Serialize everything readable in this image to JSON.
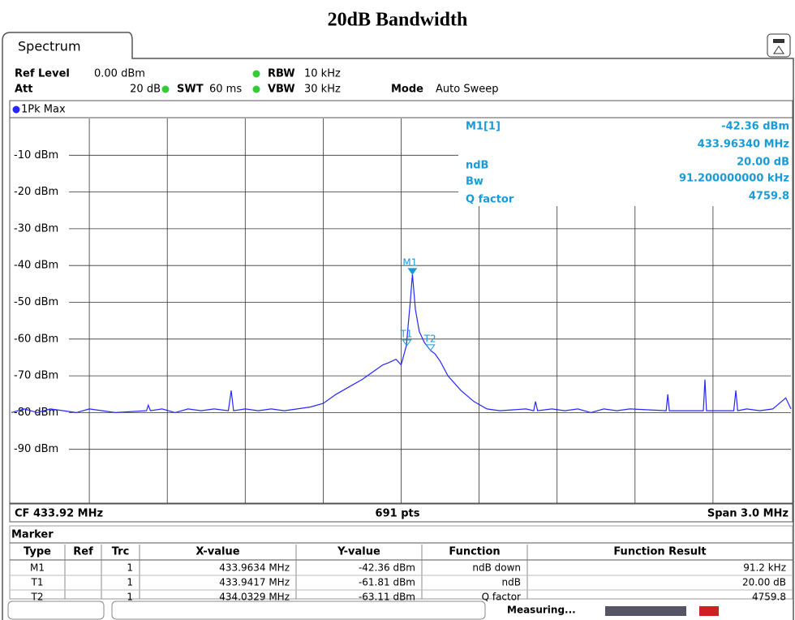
{
  "title": "20dB Bandwidth",
  "tab": "Spectrum",
  "settings": [
    {
      "label": "Ref Level",
      "value": "0.00 dBm"
    },
    {
      "label": "RBW",
      "value": "10 kHz"
    },
    {
      "label": "Att",
      "value": "20 dB"
    },
    {
      "label": "SWT",
      "value": "60 ms"
    },
    {
      "label": "VBW",
      "value": "30 kHz"
    },
    {
      "label": "Mode",
      "value": "Auto Sweep"
    }
  ],
  "chart_data": {
    "type": "line",
    "trace_label": "1Pk Max",
    "xlim": [
      432.42,
      435.42
    ],
    "ylim": [
      -100,
      0
    ],
    "yticks": [
      {
        "value": -10,
        "label": "-10 dBm"
      },
      {
        "value": -20,
        "label": "-20 dBm"
      },
      {
        "value": -30,
        "label": "-30 dBm"
      },
      {
        "value": -40,
        "label": "-40 dBm"
      },
      {
        "value": -50,
        "label": "-50 dBm"
      },
      {
        "value": -60,
        "label": "-60 dBm"
      },
      {
        "value": -70,
        "label": "-70 dBm"
      },
      {
        "value": -80,
        "label": "-80 dBm"
      },
      {
        "value": -90,
        "label": "-90 dBm"
      }
    ],
    "x": [
      432.42,
      432.47,
      432.52,
      432.57,
      432.62,
      432.67,
      432.72,
      432.77,
      432.82,
      432.94,
      432.947,
      432.955,
      433.0,
      433.05,
      433.1,
      433.15,
      433.2,
      433.255,
      433.266,
      433.275,
      433.32,
      433.37,
      433.42,
      433.47,
      433.52,
      433.57,
      433.62,
      433.67,
      433.72,
      433.77,
      433.82,
      433.85,
      433.87,
      433.9,
      433.92,
      433.94,
      433.955,
      433.9634,
      433.975,
      433.99,
      434.01,
      434.033,
      434.05,
      434.07,
      434.1,
      434.15,
      434.2,
      434.25,
      434.3,
      434.4,
      434.43,
      434.437,
      434.445,
      434.5,
      434.55,
      434.6,
      434.65,
      434.7,
      434.75,
      434.8,
      434.94,
      434.946,
      434.952,
      435.0,
      435.083,
      435.089,
      435.095,
      435.2,
      435.208,
      435.215,
      435.25,
      435.3,
      435.35,
      435.4,
      435.42
    ],
    "series": [
      {
        "name": "1Pk Max",
        "color": "#2626ff",
        "values": [
          -80,
          -79,
          -80,
          -79,
          -79.5,
          -80,
          -79,
          -79.5,
          -80,
          -79.5,
          -78,
          -79.5,
          -79,
          -80,
          -79,
          -79.5,
          -79,
          -79.5,
          -74,
          -79.5,
          -79,
          -79.5,
          -79,
          -79.5,
          -79,
          -78.5,
          -77.5,
          -75,
          -73,
          -71,
          -68.5,
          -67,
          -66.5,
          -65.5,
          -67,
          -61.8,
          -50,
          -42.36,
          -52,
          -58,
          -61,
          -63.1,
          -64,
          -66,
          -70,
          -74,
          -77,
          -79,
          -79.5,
          -79,
          -79.5,
          -77,
          -79.5,
          -79,
          -79.5,
          -79,
          -80,
          -79,
          -79.5,
          -79,
          -79.5,
          -75,
          -79.5,
          -79.5,
          -79.5,
          -71,
          -79.5,
          -79.5,
          -74,
          -79.5,
          -79,
          -79.5,
          -79,
          -76,
          -79
        ]
      }
    ],
    "markers": [
      {
        "label": "M1",
        "x": 433.9634,
        "y": -42.36
      },
      {
        "label": "T1",
        "x": 433.9417,
        "y": -61.81
      },
      {
        "label": "T2",
        "x": 434.0329,
        "y": -63.11
      }
    ]
  },
  "marker_info": [
    {
      "label": "M1[1]",
      "value": "-42.36 dBm"
    },
    {
      "value": "433.96340 MHz"
    },
    {
      "label": "ndB",
      "value": "20.00 dB"
    },
    {
      "label": "Bw",
      "value": "91.200000000 kHz"
    },
    {
      "label": "Q factor",
      "value": "4759.8"
    }
  ],
  "footer": {
    "cf": "CF 433.92 MHz",
    "pts": "691 pts",
    "span": "Span 3.0 MHz"
  },
  "table": {
    "title": "Marker",
    "columns": [
      "Type",
      "Ref",
      "Trc",
      "X-value",
      "Y-value",
      "Function",
      "Function Result"
    ],
    "rows": [
      {
        "type": "M1",
        "trc": 1,
        "x": "433.9634 MHz",
        "y": "-42.36 dBm",
        "function": "ndB down",
        "result": "91.2 kHz"
      },
      {
        "type": "T1",
        "trc": 1,
        "x": "433.9417 MHz",
        "y": "-61.81 dBm",
        "function": "ndB",
        "result": "20.00 dB"
      },
      {
        "type": "T2",
        "trc": 1,
        "x": "434.0329 MHz",
        "y": "-63.11 dBm",
        "function": "Q factor",
        "result": "4759.8"
      }
    ]
  },
  "status": "Measuring..."
}
